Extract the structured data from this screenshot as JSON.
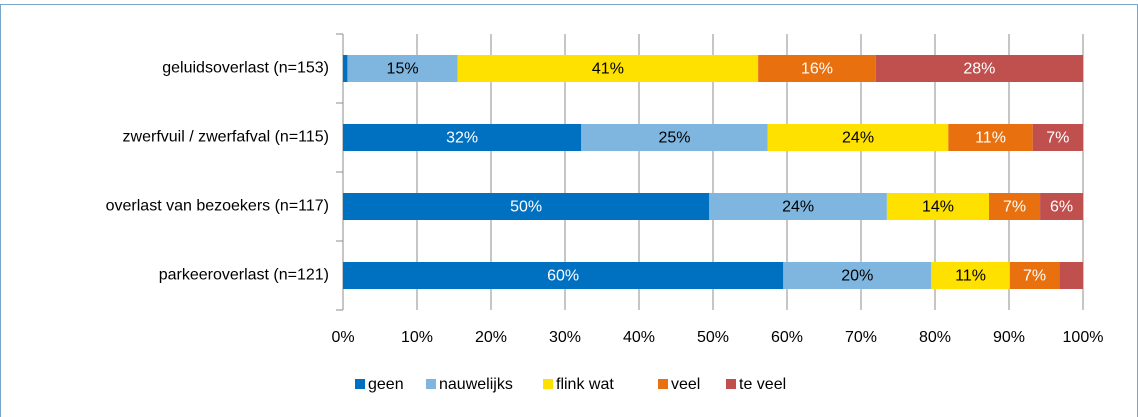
{
  "chart_data": {
    "type": "stacked-barh",
    "categories": [
      "geluidsoverlast (n=153)",
      "zwerfvuil  / zwerfafval (n=115)",
      "overlast van bezoekers (n=117)",
      "parkeeroverlast (n=121)"
    ],
    "series": [
      {
        "name": "geen",
        "color": "#0070c0",
        "values": [
          0.6,
          32.2,
          49.5,
          59.5
        ],
        "value_labels": [
          null,
          "32%",
          "50%",
          "60%"
        ]
      },
      {
        "name": "nauwelijks",
        "color": "#7fb6df",
        "values": [
          14.9,
          25.2,
          24.0,
          20.0
        ],
        "value_labels": [
          "15%",
          "25%",
          "24%",
          "20%"
        ]
      },
      {
        "name": "flink wat",
        "color": "#ffe100",
        "values": [
          40.6,
          24.4,
          13.8,
          10.6
        ],
        "value_labels": [
          "41%",
          "24%",
          "14%",
          "11%"
        ]
      },
      {
        "name": "veel",
        "color": "#e8700e",
        "values": [
          15.9,
          11.4,
          6.9,
          6.7
        ],
        "value_labels": [
          "16%",
          "11%",
          "7%",
          "7%"
        ]
      },
      {
        "name": "te veel",
        "color": "#c0504d",
        "values": [
          28.0,
          6.8,
          5.8,
          3.2
        ],
        "value_labels": [
          "28%",
          "7%",
          "6%",
          null
        ]
      }
    ],
    "xlim": [
      0,
      100
    ],
    "xticks": [
      {
        "value": 0,
        "label": "0%"
      },
      {
        "value": 10,
        "label": "10%"
      },
      {
        "value": 20,
        "label": "20%"
      },
      {
        "value": 30,
        "label": "30%"
      },
      {
        "value": 40,
        "label": "40%"
      },
      {
        "value": 50,
        "label": "50%"
      },
      {
        "value": 60,
        "label": "60%"
      },
      {
        "value": 70,
        "label": "70%"
      },
      {
        "value": 80,
        "label": "80%"
      },
      {
        "value": 90,
        "label": "90%"
      },
      {
        "value": 100,
        "label": "100%"
      }
    ],
    "grid": true,
    "legend": "bottom"
  }
}
